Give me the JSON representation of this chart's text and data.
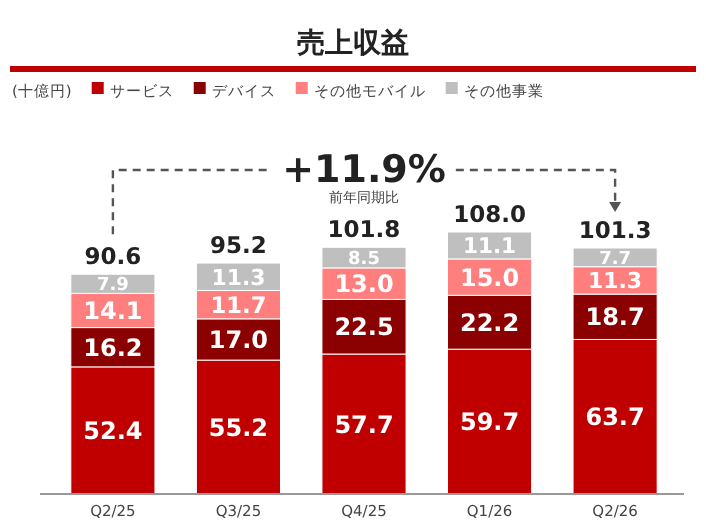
{
  "chart_data": {
    "type": "bar",
    "title": "売上収益",
    "legend_title": "(十億円)",
    "categories": [
      "Q2/25",
      "Q3/25",
      "Q4/25",
      "Q1/26",
      "Q2/26"
    ],
    "stacked": true,
    "legend": "top left",
    "series": [
      {
        "name": "サービス",
        "color": "#c00000",
        "values": [
          52.4,
          55.2,
          57.7,
          59.7,
          63.7
        ],
        "value_labels": [
          "52.4",
          "55.2",
          "57.7",
          "59.7",
          "63.7"
        ]
      },
      {
        "name": "デバイス",
        "color": "#8b0000",
        "values": [
          16.2,
          17.0,
          22.5,
          22.2,
          18.7
        ],
        "value_labels": [
          "16.2",
          "17.0",
          "22.5",
          "22.2",
          "18.7"
        ]
      },
      {
        "name": "その他モバイル",
        "color": "#ff7f7f",
        "values": [
          14.1,
          11.7,
          13.0,
          15.0,
          11.3
        ],
        "value_labels": [
          "14.1",
          "11.7",
          "13.0",
          "15.0",
          "11.3"
        ]
      },
      {
        "name": "その他事業",
        "color": "#bfbfbf",
        "values": [
          7.9,
          11.3,
          8.5,
          11.1,
          7.7
        ],
        "value_labels": [
          "7.9",
          "11.3",
          "8.5",
          "11.1",
          "7.7"
        ]
      }
    ],
    "totals": [
      "90.6",
      "95.2",
      "101.8",
      "108.0",
      "101.3"
    ],
    "annotations": [
      "+11.9%",
      "前年同期比"
    ]
  }
}
